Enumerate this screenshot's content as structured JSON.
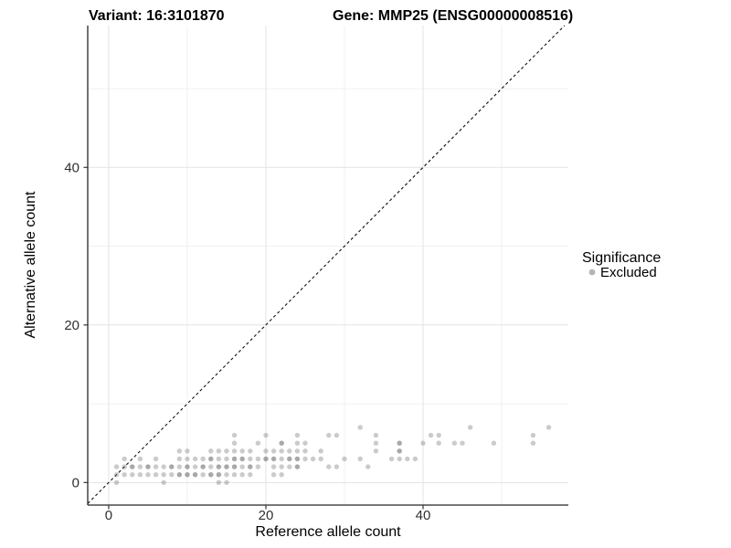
{
  "header": {
    "variant_title": "Variant: 16:3101870",
    "gene_title": "Gene: MMP25 (ENSG00000008516)"
  },
  "legend": {
    "title": "Significance",
    "entries": [
      {
        "label": "Excluded",
        "color": "#b5b5b5"
      }
    ]
  },
  "colors": {
    "background": "#ffffff",
    "panel_background": "#ffffff",
    "grid_major": "#e3e3e3",
    "grid_minor": "#f0f0f0",
    "axis_line": "#262626",
    "tick_mark": "#333333",
    "point_fill": "#606060",
    "identity_line": "#111111"
  },
  "chart_data": {
    "type": "scatter",
    "title": "Variant: 16:3101870   Gene: MMP25 (ENSG00000008516)",
    "xlabel": "Reference allele count",
    "ylabel": "Alternative allele count",
    "xlim": [
      -2.67,
      58.49
    ],
    "ylim": [
      -2.86,
      58.0
    ],
    "x_ticks": [
      0,
      20,
      40
    ],
    "x_minor_ticks": [
      10,
      30,
      50
    ],
    "y_ticks": [
      0,
      20,
      40
    ],
    "y_minor_ticks": [
      10,
      30,
      50
    ],
    "grid": true,
    "legend_position": "right",
    "identity_line": {
      "style": "dashed",
      "equation": "y = x"
    },
    "point_opacity": 0.33,
    "point_radius": 2.7,
    "series": [
      {
        "name": "Excluded",
        "points": [
          [
            1,
            0
          ],
          [
            7,
            0
          ],
          [
            14,
            0
          ],
          [
            15,
            0
          ],
          [
            1,
            1
          ],
          [
            2,
            1
          ],
          [
            3,
            1
          ],
          [
            4,
            1
          ],
          [
            5,
            1
          ],
          [
            6,
            1
          ],
          [
            7,
            1
          ],
          [
            8,
            1
          ],
          [
            9,
            1
          ],
          [
            10,
            1
          ],
          [
            11,
            1
          ],
          [
            12,
            1
          ],
          [
            13,
            1
          ],
          [
            14,
            1
          ],
          [
            15,
            1
          ],
          [
            16,
            1
          ],
          [
            17,
            1
          ],
          [
            18,
            1
          ],
          [
            21,
            1
          ],
          [
            22,
            1
          ],
          [
            1,
            2
          ],
          [
            2,
            2
          ],
          [
            3,
            2
          ],
          [
            4,
            2
          ],
          [
            5,
            2
          ],
          [
            6,
            2
          ],
          [
            7,
            2
          ],
          [
            8,
            2
          ],
          [
            9,
            2
          ],
          [
            10,
            2
          ],
          [
            11,
            2
          ],
          [
            12,
            2
          ],
          [
            13,
            2
          ],
          [
            14,
            2
          ],
          [
            15,
            2
          ],
          [
            16,
            2
          ],
          [
            17,
            2
          ],
          [
            18,
            2
          ],
          [
            19,
            2
          ],
          [
            21,
            2
          ],
          [
            22,
            2
          ],
          [
            23,
            2
          ],
          [
            24,
            2
          ],
          [
            28,
            2
          ],
          [
            29,
            2
          ],
          [
            33,
            2
          ],
          [
            2,
            3
          ],
          [
            4,
            3
          ],
          [
            6,
            3
          ],
          [
            9,
            3
          ],
          [
            10,
            3
          ],
          [
            11,
            3
          ],
          [
            12,
            3
          ],
          [
            13,
            3
          ],
          [
            14,
            3
          ],
          [
            15,
            3
          ],
          [
            16,
            3
          ],
          [
            17,
            3
          ],
          [
            18,
            3
          ],
          [
            19,
            3
          ],
          [
            20,
            3
          ],
          [
            21,
            3
          ],
          [
            22,
            3
          ],
          [
            23,
            3
          ],
          [
            24,
            3
          ],
          [
            25,
            3
          ],
          [
            26,
            3
          ],
          [
            27,
            3
          ],
          [
            30,
            3
          ],
          [
            32,
            3
          ],
          [
            36,
            3
          ],
          [
            37,
            3
          ],
          [
            38,
            3
          ],
          [
            39,
            3
          ],
          [
            9,
            4
          ],
          [
            10,
            4
          ],
          [
            13,
            4
          ],
          [
            14,
            4
          ],
          [
            15,
            4
          ],
          [
            16,
            4
          ],
          [
            17,
            4
          ],
          [
            18,
            4
          ],
          [
            20,
            4
          ],
          [
            21,
            4
          ],
          [
            22,
            4
          ],
          [
            23,
            4
          ],
          [
            24,
            4
          ],
          [
            25,
            4
          ],
          [
            27,
            4
          ],
          [
            34,
            4
          ],
          [
            37,
            4
          ],
          [
            16,
            5
          ],
          [
            19,
            5
          ],
          [
            22,
            5
          ],
          [
            24,
            5
          ],
          [
            25,
            5
          ],
          [
            34,
            5
          ],
          [
            37,
            5
          ],
          [
            40,
            5
          ],
          [
            42,
            5
          ],
          [
            44,
            5
          ],
          [
            45,
            5
          ],
          [
            49,
            5
          ],
          [
            54,
            5
          ],
          [
            16,
            6
          ],
          [
            20,
            6
          ],
          [
            24,
            6
          ],
          [
            28,
            6
          ],
          [
            29,
            6
          ],
          [
            34,
            6
          ],
          [
            41,
            6
          ],
          [
            42,
            6
          ],
          [
            54,
            6
          ],
          [
            32,
            7
          ],
          [
            46,
            7
          ],
          [
            56,
            7
          ]
        ],
        "overplotted_points": [
          [
            3,
            2
          ],
          [
            5,
            2
          ],
          [
            8,
            2
          ],
          [
            10,
            2
          ],
          [
            12,
            2
          ],
          [
            14,
            2
          ],
          [
            15,
            2
          ],
          [
            16,
            2
          ],
          [
            18,
            2
          ],
          [
            24,
            2
          ],
          [
            9,
            1
          ],
          [
            10,
            1
          ],
          [
            11,
            1
          ],
          [
            13,
            1
          ],
          [
            14,
            1
          ],
          [
            13,
            3
          ],
          [
            16,
            3
          ],
          [
            17,
            3
          ],
          [
            20,
            3
          ],
          [
            21,
            3
          ],
          [
            23,
            3
          ],
          [
            24,
            3
          ],
          [
            22,
            5
          ],
          [
            37,
            4
          ],
          [
            37,
            5
          ]
        ]
      }
    ]
  }
}
